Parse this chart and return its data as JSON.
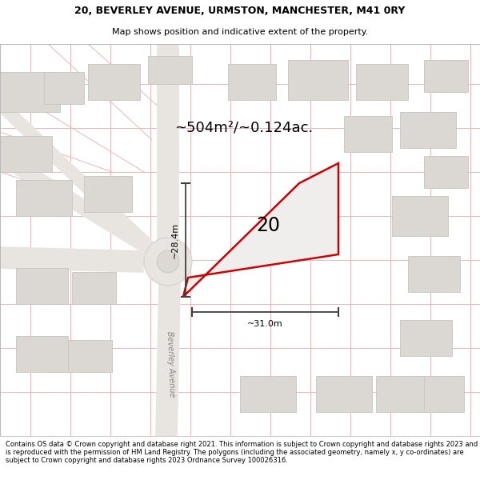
{
  "title_line1": "20, BEVERLEY AVENUE, URMSTON, MANCHESTER, M41 0RY",
  "title_line2": "Map shows position and indicative extent of the property.",
  "area_label": "~504m²/~0.124ac.",
  "property_number": "20",
  "dim_vertical": "~28.4m",
  "dim_horizontal": "~31.0m",
  "road_label": "Beverley Avenue",
  "footer_text": "Contains OS data © Crown copyright and database right 2021. This information is subject to Crown copyright and database rights 2023 and is reproduced with the permission of HM Land Registry. The polygons (including the associated geometry, namely x, y co-ordinates) are subject to Crown copyright and database rights 2023 Ordnance Survey 100026316.",
  "bg_color": "#f7f5f3",
  "plot_fill": "#f0eeed",
  "plot_edge": "#cc0000",
  "grid_color": "#e8b8b8",
  "road_color": "#e8e4e0",
  "road_edge": "#d8d0cc",
  "building_color": "#dbd7d3",
  "building_edge": "#c8c4c0",
  "roundabout_color": "#e8e4e0",
  "dim_line_color": "#404040",
  "label_color": "#222222"
}
